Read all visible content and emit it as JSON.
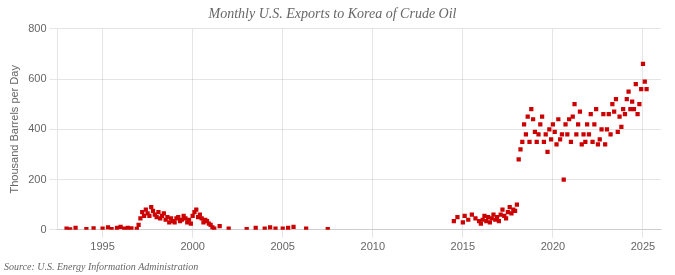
{
  "chart_data": {
    "type": "scatter",
    "title": "Monthly U.S. Exports to Korea of Crude Oil",
    "ylabel": "Thousand Barrels per Day",
    "annotations": [
      "Source: U.S. Energy Information Administration"
    ],
    "color": "#cc0000",
    "marker": "square",
    "grid": true,
    "xlim": [
      1992.5,
      2026
    ],
    "xticks": [
      1995,
      2000,
      2005,
      2010,
      2015,
      2020,
      2025
    ],
    "ylim": [
      0,
      800
    ],
    "yticks": [
      0,
      200,
      400,
      600,
      800
    ],
    "x": [
      1993.0,
      1993.2,
      1993.5,
      1994.1,
      1994.5,
      1995.0,
      1995.3,
      1995.5,
      1995.8,
      1996.0,
      1996.2,
      1996.4,
      1996.6,
      1996.9,
      1997.0,
      1997.1,
      1997.2,
      1997.3,
      1997.4,
      1997.5,
      1997.6,
      1997.7,
      1997.8,
      1997.9,
      1998.0,
      1998.1,
      1998.2,
      1998.3,
      1998.4,
      1998.5,
      1998.6,
      1998.7,
      1998.8,
      1998.9,
      1999.0,
      1999.1,
      1999.2,
      1999.3,
      1999.4,
      1999.5,
      1999.6,
      1999.7,
      1999.8,
      1999.9,
      2000.0,
      2000.1,
      2000.2,
      2000.3,
      2000.4,
      2000.5,
      2000.6,
      2000.7,
      2000.8,
      2000.9,
      2001.0,
      2001.1,
      2001.2,
      2001.5,
      2002.0,
      2003.0,
      2003.5,
      2004.0,
      2004.3,
      2004.6,
      2005.0,
      2005.3,
      2005.6,
      2006.3,
      2007.5,
      2014.5,
      2014.7,
      2015.0,
      2015.1,
      2015.3,
      2015.5,
      2015.7,
      2015.9,
      2016.0,
      2016.1,
      2016.2,
      2016.3,
      2016.4,
      2016.5,
      2016.6,
      2016.7,
      2016.8,
      2016.9,
      2017.0,
      2017.1,
      2017.2,
      2017.3,
      2017.4,
      2017.5,
      2017.6,
      2017.7,
      2017.8,
      2017.9,
      2018.0,
      2018.1,
      2018.2,
      2018.3,
      2018.4,
      2018.5,
      2018.6,
      2018.7,
      2018.8,
      2018.9,
      2019.0,
      2019.1,
      2019.2,
      2019.3,
      2019.4,
      2019.5,
      2019.6,
      2019.7,
      2019.8,
      2019.9,
      2020.0,
      2020.1,
      2020.2,
      2020.3,
      2020.4,
      2020.5,
      2020.6,
      2020.7,
      2020.8,
      2020.9,
      2021.0,
      2021.1,
      2021.2,
      2021.3,
      2021.4,
      2021.5,
      2021.6,
      2021.7,
      2021.8,
      2021.9,
      2022.0,
      2022.1,
      2022.2,
      2022.3,
      2022.4,
      2022.5,
      2022.6,
      2022.7,
      2022.8,
      2022.9,
      2023.0,
      2023.1,
      2023.2,
      2023.3,
      2023.4,
      2023.5,
      2023.6,
      2023.7,
      2023.8,
      2023.9,
      2024.0,
      2024.1,
      2024.2,
      2024.3,
      2024.4,
      2024.5,
      2024.6,
      2024.7,
      2024.8,
      2024.9,
      2025.0,
      2025.1,
      2025.2
    ],
    "values": [
      5,
      2,
      8,
      3,
      6,
      5,
      10,
      3,
      8,
      12,
      5,
      8,
      6,
      4,
      20,
      45,
      70,
      55,
      80,
      65,
      55,
      90,
      75,
      60,
      50,
      70,
      45,
      55,
      65,
      40,
      50,
      30,
      45,
      35,
      30,
      45,
      50,
      35,
      40,
      55,
      45,
      30,
      40,
      25,
      55,
      70,
      80,
      50,
      60,
      45,
      30,
      40,
      35,
      25,
      20,
      10,
      5,
      15,
      5,
      3,
      8,
      5,
      10,
      5,
      5,
      8,
      12,
      5,
      3,
      35,
      50,
      30,
      55,
      40,
      60,
      45,
      35,
      25,
      40,
      55,
      35,
      50,
      30,
      45,
      60,
      40,
      50,
      35,
      60,
      80,
      55,
      45,
      70,
      90,
      65,
      80,
      75,
      100,
      280,
      320,
      350,
      420,
      380,
      450,
      350,
      480,
      440,
      390,
      350,
      380,
      420,
      450,
      350,
      380,
      310,
      400,
      360,
      420,
      390,
      340,
      440,
      360,
      380,
      200,
      420,
      380,
      440,
      350,
      450,
      500,
      380,
      420,
      470,
      340,
      380,
      350,
      420,
      380,
      460,
      350,
      420,
      480,
      340,
      360,
      400,
      460,
      340,
      400,
      460,
      380,
      500,
      470,
      520,
      390,
      450,
      410,
      480,
      460,
      520,
      550,
      480,
      510,
      480,
      580,
      460,
      500,
      560,
      660,
      590,
      560
    ]
  }
}
